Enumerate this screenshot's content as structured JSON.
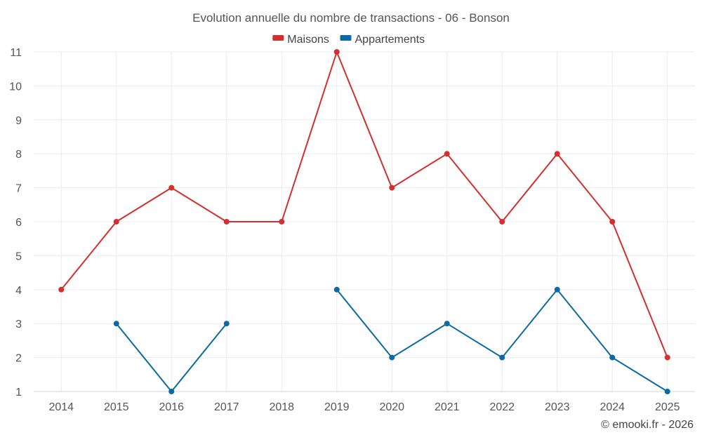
{
  "chart_data": {
    "type": "line",
    "title": "Evolution annuelle du nombre de transactions - 06 - Bonson",
    "xlabel": "",
    "ylabel": "",
    "ylim": [
      1,
      11
    ],
    "yticks": [
      "1",
      "2",
      "3",
      "4",
      "5",
      "6",
      "7",
      "8",
      "9",
      "10",
      "11"
    ],
    "categories": [
      "2014",
      "2015",
      "2016",
      "2017",
      "2018",
      "2019",
      "2020",
      "2021",
      "2022",
      "2023",
      "2024",
      "2025"
    ],
    "grid": true,
    "legend_position": "top-center",
    "series": [
      {
        "name": "Maisons",
        "color": "#d32f2f",
        "values": [
          4,
          6,
          7,
          6,
          6,
          11,
          7,
          8,
          6,
          8,
          6,
          2
        ]
      },
      {
        "name": "Appartements",
        "color": "#0a6aa1",
        "values": [
          null,
          3,
          1,
          3,
          null,
          4,
          2,
          3,
          2,
          4,
          2,
          1
        ]
      }
    ]
  },
  "credit": "© emooki.fr - 2026"
}
